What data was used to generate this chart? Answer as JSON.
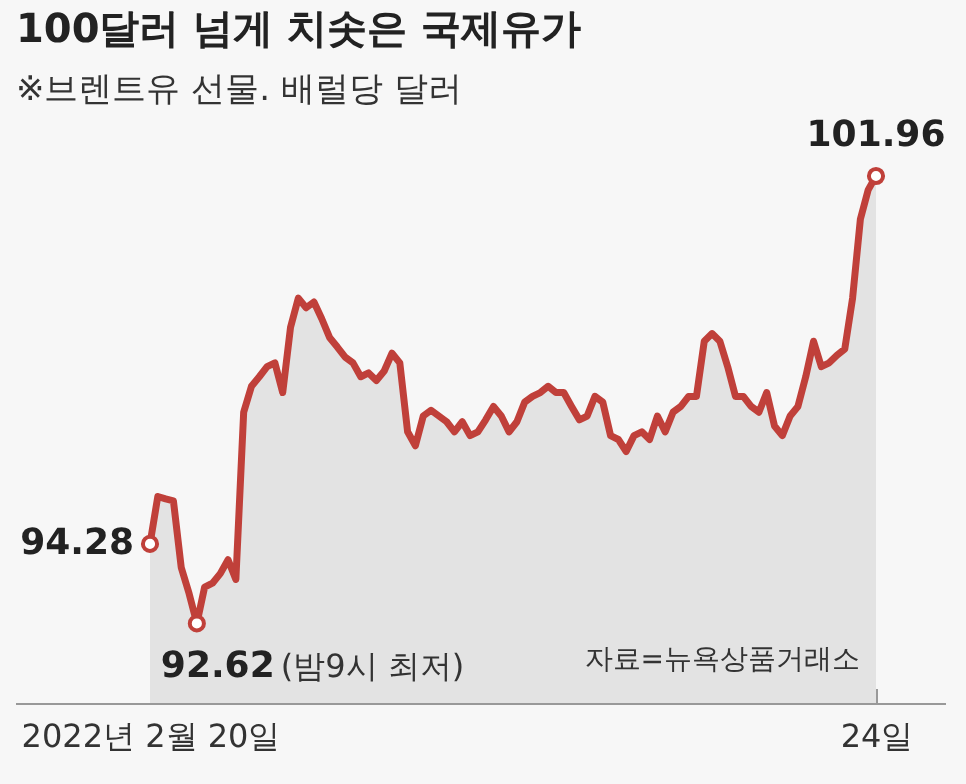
{
  "chart_data": {
    "type": "area",
    "title": "100달러 넘게 치솟은 국제유가",
    "subtitle": "※브렌트유 선물. 배럴당 달러",
    "categories": [
      "2022년 2월 20일",
      null,
      null,
      null,
      null,
      null,
      null,
      null,
      null,
      null,
      null,
      null,
      null,
      null,
      null,
      null,
      null,
      null,
      null,
      null,
      null,
      null,
      null,
      null,
      null,
      null,
      null,
      null,
      null,
      null,
      null,
      null,
      null,
      null,
      null,
      null,
      null,
      null,
      null,
      null,
      null,
      null,
      null,
      null,
      null,
      null,
      null,
      null,
      null,
      null,
      null,
      null,
      null,
      null,
      null,
      null,
      null,
      null,
      null,
      null,
      null,
      null,
      null,
      null,
      null,
      null,
      null,
      null,
      null,
      null,
      null,
      null,
      null,
      null,
      null,
      null,
      null,
      null,
      null,
      null,
      null,
      null,
      null,
      null,
      null,
      null,
      null,
      null,
      null,
      null,
      null,
      null,
      null,
      "24일"
    ],
    "series": [
      {
        "color": "#c0403a",
        "values": [
          94.28,
          95.27,
          95.22,
          95.18,
          93.79,
          93.25,
          92.62,
          93.38,
          93.46,
          93.66,
          93.95,
          93.54,
          97.03,
          97.57,
          97.77,
          97.98,
          98.06,
          97.44,
          98.8,
          99.41,
          99.21,
          99.33,
          98.98,
          98.59,
          98.39,
          98.18,
          98.06,
          97.77,
          97.85,
          97.69,
          97.89,
          98.26,
          98.06,
          96.62,
          96.33,
          96.95,
          97.07,
          96.95,
          96.83,
          96.62,
          96.83,
          96.54,
          96.62,
          96.87,
          97.15,
          96.95,
          96.62,
          96.83,
          97.24,
          97.36,
          97.44,
          97.57,
          97.44,
          97.44,
          97.15,
          96.87,
          96.95,
          97.36,
          97.24,
          96.54,
          96.46,
          96.21,
          96.54,
          96.62,
          96.46,
          96.95,
          96.62,
          97.03,
          97.15,
          97.36,
          97.36,
          98.51,
          98.67,
          98.51,
          97.98,
          97.36,
          97.36,
          97.15,
          97.03,
          97.44,
          96.74,
          96.54,
          96.95,
          97.15,
          97.77,
          98.51,
          97.98,
          98.06,
          98.22,
          98.35,
          99.41,
          101.06,
          101.67,
          101.96
        ],
        "value_labels": [
          "94.28",
          null,
          null,
          null,
          null,
          null,
          "92.62",
          null,
          null,
          null,
          null,
          null,
          null,
          null,
          null,
          null,
          null,
          null,
          null,
          null,
          null,
          null,
          null,
          null,
          null,
          null,
          null,
          null,
          null,
          null,
          null,
          null,
          null,
          null,
          null,
          null,
          null,
          null,
          null,
          null,
          null,
          null,
          null,
          null,
          null,
          null,
          null,
          null,
          null,
          null,
          null,
          null,
          null,
          null,
          null,
          null,
          null,
          null,
          null,
          null,
          null,
          null,
          null,
          null,
          null,
          null,
          null,
          null,
          null,
          null,
          null,
          null,
          null,
          null,
          null,
          null,
          null,
          null,
          null,
          null,
          null,
          null,
          null,
          null,
          null,
          null,
          null,
          null,
          null,
          null,
          null,
          null,
          null,
          "101.96"
        ]
      }
    ],
    "annotations": [
      "(밤9시 최저)",
      "자료=뉴욕상품거래소"
    ]
  }
}
